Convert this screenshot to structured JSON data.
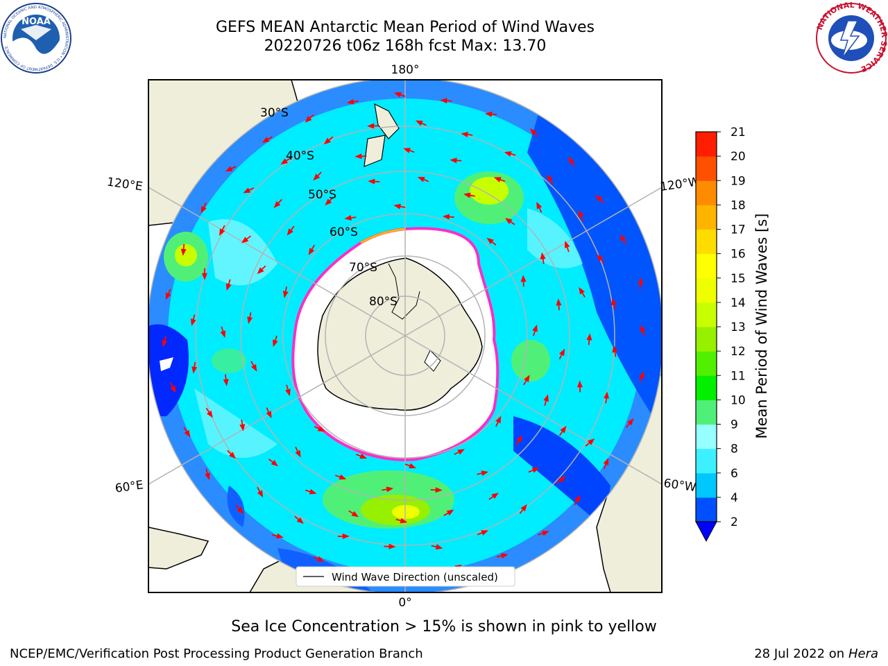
{
  "title": {
    "line1": "GEFS MEAN Antarctic Mean Period of Wind Waves",
    "line2": "20220726 t06z 168h fcst   Max: 13.70"
  },
  "map": {
    "projection": "south-polar-stereographic",
    "longitude_labels": [
      "180°",
      "120°E",
      "120°W",
      "60°E",
      "60°W",
      "0°"
    ],
    "latitude_labels": [
      "30°S",
      "40°S",
      "50°S",
      "60°S",
      "70°S",
      "80°S"
    ],
    "legend_label": "Wind Wave Direction (unscaled)",
    "arrow_color": "#ff0000"
  },
  "colorbar": {
    "label": "Mean Period of Wind Waves [s]",
    "ticks": [
      "2",
      "4",
      "6",
      "8",
      "9",
      "10",
      "11",
      "12",
      "13",
      "14",
      "15",
      "16",
      "17",
      "18",
      "19",
      "20",
      "21"
    ],
    "colors": [
      "#0050ff",
      "#00c8ff",
      "#3cf0ff",
      "#96ffff",
      "#50f078",
      "#00f000",
      "#50f000",
      "#96f000",
      "#c8ff00",
      "#f0ff00",
      "#ffff00",
      "#ffdc00",
      "#ffb400",
      "#ff8c00",
      "#ff5000",
      "#ff1e00"
    ],
    "under_color": "#0000ff"
  },
  "caption": "Sea Ice Concentration > 15% is shown in pink to yellow",
  "footer": {
    "credit": "NCEP/EMC/Verification Post Processing Product Generation Branch",
    "date_prefix": "28 Jul 2022 on ",
    "machine": "Hera"
  },
  "logos": {
    "noaa_text": "NOAA",
    "noaa_ring_text": "NATIONAL OCEANIC AND ATMOSPHERIC ADMINISTRATION • U.S. DEPARTMENT OF COMMERCE",
    "nws_ring_text": "NATIONAL WEATHER SERVICE"
  }
}
